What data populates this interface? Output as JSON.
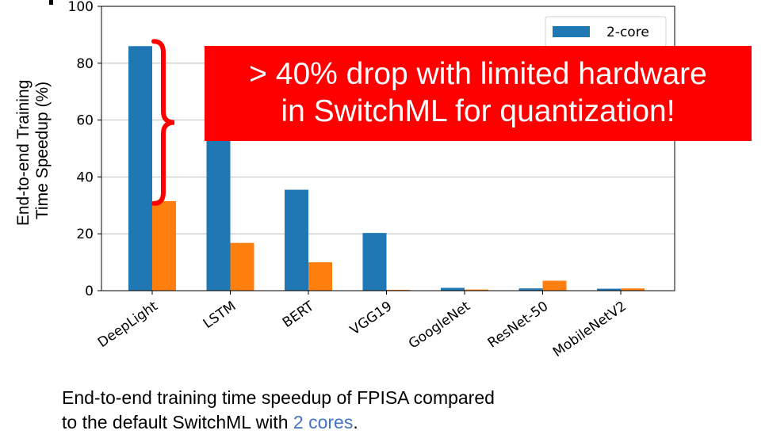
{
  "chart_data": {
    "type": "bar",
    "categories": [
      "DeepLight",
      "LSTM",
      "BERT",
      "VGG19",
      "GoogleNet",
      "ResNet-50",
      "MobileNetV2"
    ],
    "series": [
      {
        "name": "2-core",
        "color": "#1f77b4",
        "values": [
          86,
          58,
          35.5,
          20.3,
          1.0,
          0.8,
          0.7
        ]
      },
      {
        "name": "",
        "color": "#ff7f0e",
        "values": [
          31.5,
          16.8,
          10,
          0.3,
          0.4,
          3.5,
          0.8
        ]
      }
    ],
    "ylabel_lines": [
      "End-to-end Training",
      "Time Speedup (%)"
    ],
    "xlabel": "",
    "ylim": [
      0,
      100
    ],
    "yticks": [
      0,
      20,
      40,
      60,
      80,
      100
    ],
    "legend": {
      "entries": [
        "2-core"
      ],
      "placement": "top-right"
    },
    "annotation": {
      "lines": [
        "> 40% drop with limited hardware",
        "in SwitchML for quantization!"
      ],
      "brace_from": 86,
      "brace_to": 31.5,
      "brace_category": "DeepLight"
    }
  },
  "caption": {
    "line1": "End-to-end training time speedup of FPISA compared",
    "line2_prefix": "to the default SwitchML with ",
    "line2_highlight": "2 cores",
    "line2_suffix": "."
  },
  "colors": {
    "annotation": "#ff0000",
    "highlight": "#4472c4"
  }
}
